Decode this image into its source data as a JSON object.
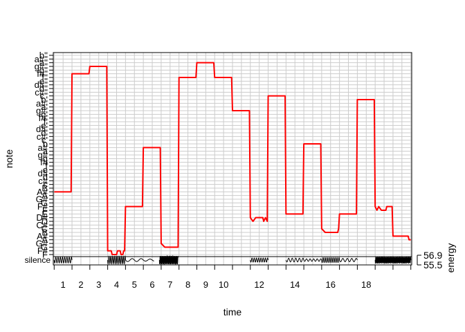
{
  "chart_data": {
    "type": "line",
    "title": "",
    "xlabel": "time",
    "ylabel": "note",
    "energy_label": "energy",
    "energy_ticks": [
      "56.9",
      "55.5"
    ],
    "x_ticks": [
      "1",
      "2",
      "3",
      "4",
      "5",
      "6",
      "7",
      "8",
      "9",
      "10",
      "12",
      "14",
      "16",
      "18"
    ],
    "x_tick_values": [
      1,
      2,
      3,
      4,
      5,
      6,
      7,
      8,
      9,
      10,
      12,
      14,
      16,
      18
    ],
    "xlim": [
      -0.05,
      20.05
    ],
    "grid": true,
    "silence_label": "silence",
    "y_notes": [
      "F",
      "F#",
      "G",
      "G#",
      "A",
      "A#",
      "B",
      "C",
      "C#",
      "D",
      "D#",
      "E",
      "F",
      "F#",
      "G",
      "G#",
      "A",
      "A#",
      "B",
      "c",
      "c#",
      "d",
      "d#",
      "e",
      "f",
      "f#",
      "g",
      "g#",
      "a",
      "a#",
      "b",
      "c'",
      "c#'",
      "d'",
      "d#'",
      "e'",
      "f'",
      "f#'",
      "g'",
      "g#'",
      "a'",
      "a#'",
      "b'",
      "c''",
      "c#''",
      "d''",
      "d#''",
      "e''",
      "f''",
      "f#''",
      "g''",
      "g#''",
      "a''",
      "a#''",
      "b''"
    ],
    "series": [
      {
        "color": "#ff0000",
        "points": [
          [
            0.0,
            18
          ],
          [
            0.95,
            18
          ],
          [
            1.0,
            50
          ],
          [
            1.95,
            50
          ],
          [
            2.0,
            52
          ],
          [
            2.95,
            52
          ],
          [
            3.0,
            2
          ],
          [
            3.2,
            2
          ],
          [
            3.25,
            1
          ],
          [
            3.5,
            1
          ],
          [
            3.55,
            2
          ],
          [
            3.7,
            2
          ],
          [
            3.75,
            1
          ],
          [
            3.85,
            1
          ],
          [
            3.9,
            2
          ],
          [
            3.95,
            2
          ],
          [
            4.0,
            14
          ],
          [
            4.95,
            14
          ],
          [
            5.0,
            30
          ],
          [
            5.95,
            30
          ],
          [
            6.0,
            4
          ],
          [
            6.2,
            3
          ],
          [
            6.95,
            3
          ],
          [
            7.0,
            49
          ],
          [
            7.95,
            49
          ],
          [
            8.0,
            53
          ],
          [
            8.95,
            53
          ],
          [
            9.0,
            49
          ],
          [
            9.95,
            49
          ],
          [
            10.0,
            40
          ],
          [
            10.95,
            40
          ],
          [
            11.0,
            11
          ],
          [
            11.15,
            10
          ],
          [
            11.3,
            11
          ],
          [
            11.7,
            11
          ],
          [
            11.75,
            10
          ],
          [
            11.85,
            11
          ],
          [
            11.95,
            10
          ],
          [
            12.0,
            44
          ],
          [
            12.95,
            44
          ],
          [
            13.0,
            12
          ],
          [
            13.95,
            12
          ],
          [
            14.0,
            31
          ],
          [
            14.95,
            31
          ],
          [
            15.0,
            8
          ],
          [
            15.2,
            7
          ],
          [
            15.9,
            7
          ],
          [
            15.95,
            8
          ],
          [
            16.0,
            12
          ],
          [
            16.95,
            12
          ],
          [
            17.0,
            43
          ],
          [
            17.95,
            43
          ],
          [
            18.0,
            14
          ],
          [
            18.1,
            13
          ],
          [
            18.2,
            14
          ],
          [
            18.35,
            13
          ],
          [
            18.6,
            13
          ],
          [
            18.65,
            14
          ],
          [
            18.95,
            14
          ],
          [
            19.0,
            6
          ],
          [
            19.85,
            6
          ],
          [
            19.9,
            5
          ],
          [
            20.0,
            5
          ]
        ]
      }
    ],
    "energy_series": [
      {
        "x": [
          0.0,
          1.0
        ],
        "amplitude": 0.7,
        "freq": 8
      },
      {
        "x": [
          3.0,
          4.0
        ],
        "amplitude": 0.9,
        "freq": 10
      },
      {
        "x": [
          4.0,
          5.0
        ],
        "amplitude": 0.35,
        "freq": 2
      },
      {
        "x": [
          5.0,
          5.6
        ],
        "amplitude": 0.25,
        "freq": 2
      },
      {
        "x": [
          5.9,
          6.95
        ],
        "amplitude": 1.0,
        "freq": 18
      },
      {
        "x": [
          11.0,
          12.0
        ],
        "amplitude": 0.5,
        "freq": 8
      },
      {
        "x": [
          13.0,
          14.0
        ],
        "amplitude": 0.45,
        "freq": 5
      },
      {
        "x": [
          14.0,
          15.0
        ],
        "amplitude": 0.3,
        "freq": 5
      },
      {
        "x": [
          15.0,
          16.0
        ],
        "amplitude": 0.6,
        "freq": 9
      },
      {
        "x": [
          16.0,
          17.0
        ],
        "amplitude": 0.4,
        "freq": 4
      },
      {
        "x": [
          18.0,
          20.0
        ],
        "amplitude": 0.85,
        "freq": 22
      }
    ]
  }
}
